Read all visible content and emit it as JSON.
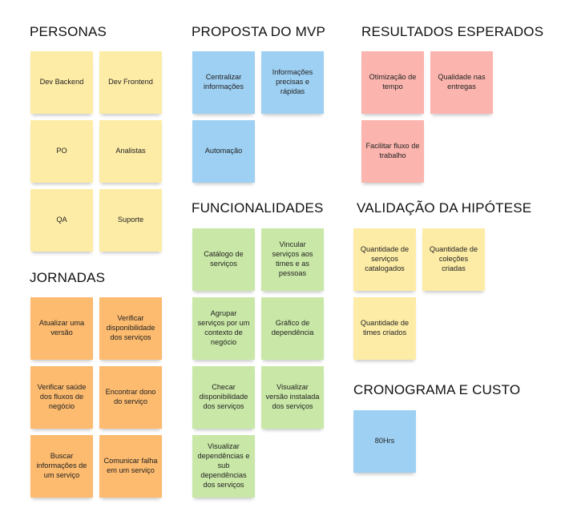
{
  "colors": {
    "yellow": "#fdeca6",
    "blue": "#9ed0f3",
    "pink": "#fbb5ae",
    "orange": "#fdbb6f",
    "green": "#c9e8a7"
  },
  "personas": {
    "title": "PERSONAS",
    "notes": [
      "Dev Backend",
      "Dev Frontend",
      "PO",
      "Analistas",
      "QA",
      "Suporte"
    ]
  },
  "jornadas": {
    "title": "JORNADAS",
    "notes": [
      "Atualizar uma versão",
      "Verificar disponibilidade dos serviços",
      "Verificar saúde dos fluxos de negócio",
      "Encontrar dono do serviço",
      "Buscar informações de um serviço",
      "Comunicar falha em um serviço"
    ]
  },
  "proposta": {
    "title": "PROPOSTA DO MVP",
    "notes": [
      "Centralizar informações",
      "Informações precisas e rápidas",
      "Automação"
    ]
  },
  "funcionalidades": {
    "title": "FUNCIONALIDADES",
    "notes": [
      "Catálogo de serviços",
      "Vincular serviços aos times e as pessoas",
      "Agrupar serviços por um contexto de negócio",
      "Gráfico de dependência",
      "Checar disponibilidade dos serviços",
      "Visualizar versão instalada dos serviços",
      "Visualizar dependências e sub dependências dos serviços"
    ]
  },
  "resultados": {
    "title": "RESULTADOS ESPERADOS",
    "notes": [
      "Otimização de tempo",
      "Qualidade nas entregas",
      "Facilitar fluxo de trabalho"
    ]
  },
  "validacao": {
    "title": "VALIDAÇÃO DA HIPÓTESE",
    "notes": [
      "Quantidade de serviços catalogados",
      "Quantidade de coleções criadas",
      "Quantidade de times criados"
    ]
  },
  "cronograma": {
    "title": "CRONOGRAMA E CUSTO",
    "notes": [
      "80Hrs"
    ]
  }
}
